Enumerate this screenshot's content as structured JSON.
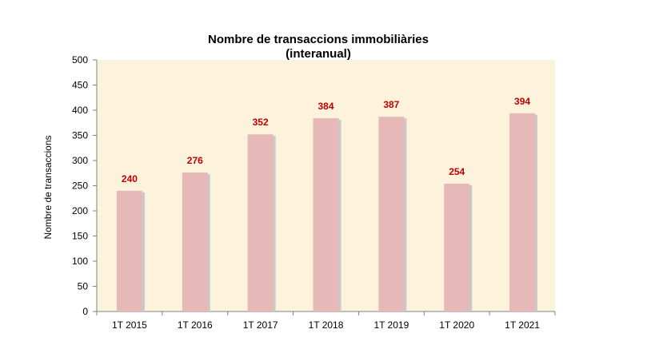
{
  "chart_data": {
    "type": "bar",
    "title": [
      "Nombre de transaccions immobiliàries",
      "(interanual)"
    ],
    "xlabel": "",
    "ylabel": "Nombre de transaccions",
    "categories": [
      "1T 2015",
      "1T 2016",
      "1T 2017",
      "1T 2018",
      "1T 2019",
      "1T 2020",
      "1T 2021"
    ],
    "values": [
      240,
      276,
      352,
      384,
      387,
      254,
      394
    ],
    "data_labels": [
      "240",
      "276",
      "352",
      "384",
      "387",
      "254",
      "394"
    ],
    "ylim": [
      0,
      500
    ],
    "yticks": [
      0,
      50,
      100,
      150,
      200,
      250,
      300,
      350,
      400,
      450,
      500
    ],
    "grid": false,
    "legend": "none",
    "colors": {
      "bar_fill": "#e6b8b7",
      "bar_shadow": "#c9c9c9",
      "plot_background": "#fdf3dc",
      "data_label": "#c00000",
      "axis": "#808080"
    }
  }
}
